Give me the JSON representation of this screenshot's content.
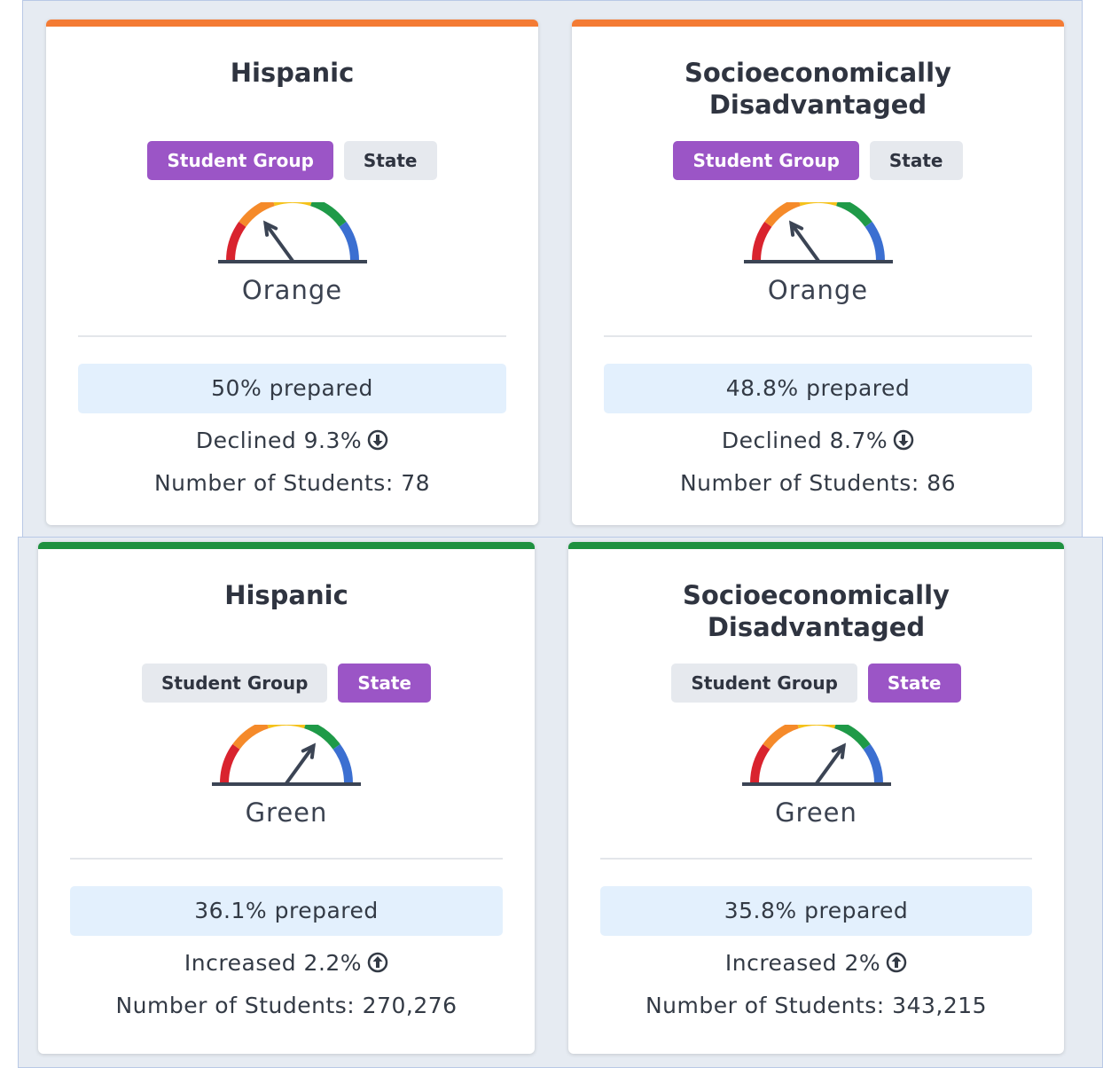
{
  "cards": [
    {
      "title": "Hispanic",
      "tags": [
        "Student Group",
        "State"
      ],
      "active_tag": 0,
      "accent": "#f47b34",
      "gauge_segment": 1,
      "status": "Orange",
      "prepared": "50% prepared",
      "change": "Declined 9.3%",
      "change_direction": "down",
      "students": "Number of Students: 78"
    },
    {
      "title": "Socioeconomically Disadvantaged",
      "tags": [
        "Student Group",
        "State"
      ],
      "active_tag": 0,
      "accent": "#f47b34",
      "gauge_segment": 1,
      "status": "Orange",
      "prepared": "48.8% prepared",
      "change": "Declined 8.7%",
      "change_direction": "down",
      "students": "Number of Students: 86"
    },
    {
      "title": "Hispanic",
      "tags": [
        "Student Group",
        "State"
      ],
      "active_tag": 1,
      "accent": "#1e9140",
      "gauge_segment": 3,
      "status": "Green",
      "prepared": "36.1% prepared",
      "change": "Increased 2.2%",
      "change_direction": "up",
      "students": "Number of Students: 270,276"
    },
    {
      "title": "Socioeconomically Disadvantaged",
      "tags": [
        "Student Group",
        "State"
      ],
      "active_tag": 1,
      "accent": "#1e9140",
      "gauge_segment": 3,
      "status": "Green",
      "prepared": "35.8% prepared",
      "change": "Increased 2%",
      "change_direction": "up",
      "students": "Number of Students: 343,215"
    }
  ]
}
